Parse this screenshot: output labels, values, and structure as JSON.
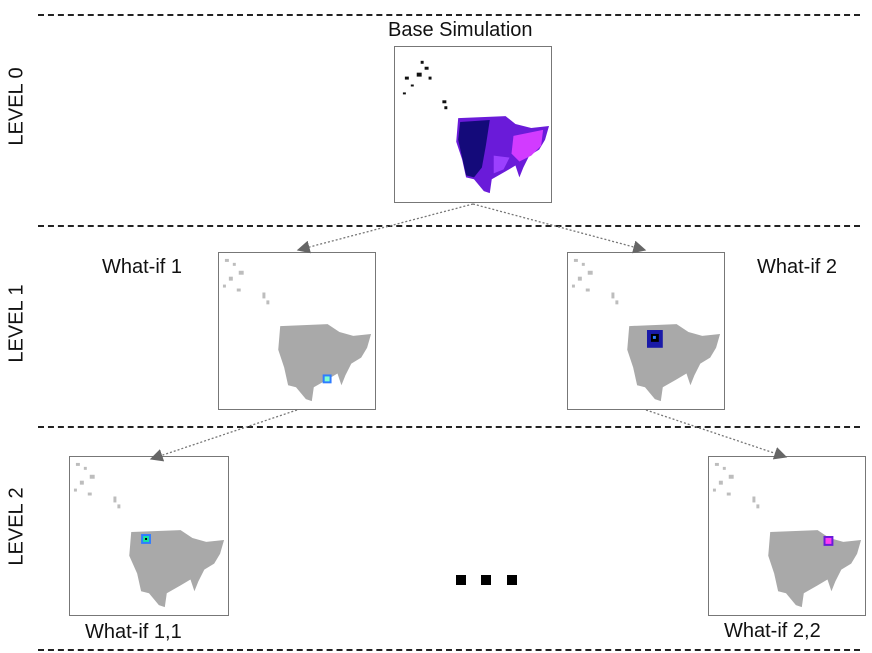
{
  "levels": {
    "level0": "LEVEL 0",
    "level1": "LEVEL 1",
    "level2": "LEVEL 2"
  },
  "nodes": {
    "base": "Base Simulation",
    "whatif1": "What-if 1",
    "whatif2": "What-if 2",
    "whatif11": "What-if 1,1",
    "whatif22": "What-if 2,2"
  },
  "colors": {
    "map_grey": "#a9a9a9",
    "map_purple": "#6a1bd9",
    "map_magenta": "#e03aff",
    "highlight_blue": "#2f7cff",
    "highlight_dark": "#140a7a"
  }
}
